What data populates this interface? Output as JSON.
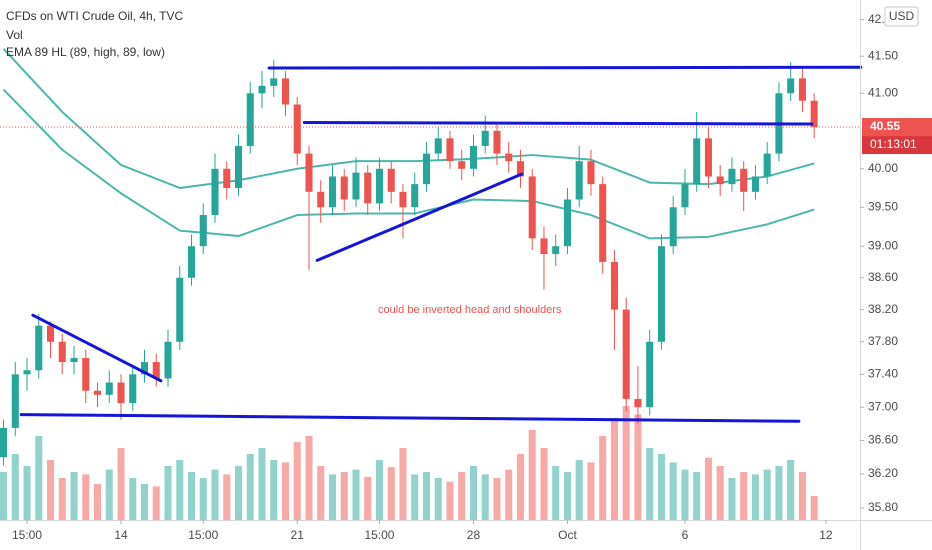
{
  "chart_data": {
    "type": "candlestick",
    "title": "CFDs on WTI Crude Oil, 4h, TVC",
    "indicators": [
      "Vol",
      "EMA 89 HL (89, high, 89, low)"
    ],
    "currency": "USD",
    "countdown": "01:13:01",
    "annotation": "could be inverted head and shoulders",
    "log_scale": true,
    "grid": false,
    "up_color": "#26a69a",
    "down_color": "#ef5350",
    "xlim": [
      -0.3,
      72.9
    ],
    "ylim": [
      35.66,
      42.27
    ],
    "yticks": [
      {
        "value": 42,
        "label": "42.00"
      },
      {
        "value": 41.5,
        "label": "41.50"
      },
      {
        "value": 41,
        "label": "41.00"
      },
      {
        "value": 40,
        "label": "40.00"
      },
      {
        "value": 39.5,
        "label": "39.50"
      },
      {
        "value": 39,
        "label": "39.00"
      },
      {
        "value": 38.6,
        "label": "38.60"
      },
      {
        "value": 38.2,
        "label": "38.20"
      },
      {
        "value": 37.8,
        "label": "37.80"
      },
      {
        "value": 37.4,
        "label": "37.40"
      },
      {
        "value": 37,
        "label": "37.00"
      },
      {
        "value": 36.6,
        "label": "36.60"
      },
      {
        "value": 36.2,
        "label": "36.20"
      },
      {
        "value": 35.8,
        "label": "35.80"
      }
    ],
    "xticks": [
      {
        "value": 2,
        "label": "15:00"
      },
      {
        "value": 10,
        "label": "14"
      },
      {
        "value": 17,
        "label": "15:00"
      },
      {
        "value": 25,
        "label": "21"
      },
      {
        "value": 32,
        "label": "15:00"
      },
      {
        "value": 40,
        "label": "28"
      },
      {
        "value": 48,
        "label": "Oct"
      },
      {
        "value": 58,
        "label": "6"
      },
      {
        "value": 70,
        "label": "12"
      }
    ],
    "open": [
      36.4,
      36.75,
      37.4,
      37.45,
      38.0,
      37.8,
      37.55,
      37.6,
      37.2,
      37.15,
      37.3,
      37.05,
      37.4,
      37.55,
      37.35,
      37.8,
      38.6,
      39.0,
      39.4,
      40.0,
      39.75,
      40.3,
      41.0,
      41.1,
      41.2,
      40.85,
      40.2,
      39.7,
      39.5,
      39.9,
      39.6,
      39.95,
      39.55,
      40.0,
      39.7,
      39.5,
      39.8,
      40.2,
      40.4,
      40.1,
      40.0,
      40.3,
      40.5,
      40.2,
      40.1,
      39.9,
      39.1,
      38.9,
      39.0,
      39.6,
      40.1,
      39.8,
      38.8,
      38.2,
      37.1,
      37.0,
      37.8,
      39.0,
      39.5,
      39.8,
      40.4,
      39.9,
      39.8,
      40.0,
      39.7,
      39.9,
      40.2,
      41.0,
      41.2,
      40.9
    ],
    "high": [
      36.85,
      37.55,
      37.6,
      38.15,
      38.05,
      37.9,
      37.75,
      37.7,
      37.3,
      37.45,
      37.4,
      37.5,
      37.7,
      37.65,
      37.95,
      38.75,
      39.15,
      39.55,
      40.2,
      40.1,
      40.45,
      41.15,
      41.3,
      41.45,
      41.3,
      40.95,
      40.3,
      39.85,
      40.05,
      40.0,
      40.15,
      40.05,
      40.15,
      40.1,
      39.8,
      39.95,
      40.35,
      40.55,
      40.5,
      40.25,
      40.45,
      40.7,
      40.6,
      40.35,
      40.25,
      40.0,
      39.25,
      39.15,
      39.75,
      40.3,
      40.25,
      39.9,
      38.95,
      38.35,
      37.5,
      37.95,
      39.15,
      39.65,
      40.0,
      40.75,
      40.55,
      40.05,
      40.15,
      40.1,
      40.05,
      40.35,
      41.15,
      41.42,
      41.35,
      41.0
    ],
    "low": [
      36.3,
      36.65,
      37.2,
      37.35,
      37.6,
      37.4,
      37.4,
      37.05,
      37.0,
      37.05,
      36.85,
      36.95,
      37.3,
      37.25,
      37.25,
      37.7,
      38.5,
      38.9,
      39.3,
      39.6,
      39.65,
      40.2,
      40.8,
      40.95,
      40.7,
      40.05,
      38.7,
      39.3,
      39.4,
      39.45,
      39.5,
      39.4,
      39.45,
      39.55,
      39.1,
      39.4,
      39.7,
      40.1,
      40.0,
      39.85,
      39.9,
      40.2,
      40.05,
      39.95,
      39.75,
      38.95,
      38.45,
      38.75,
      38.9,
      39.5,
      39.65,
      38.65,
      37.7,
      36.95,
      36.8,
      36.9,
      37.7,
      38.9,
      39.4,
      39.7,
      39.75,
      39.65,
      39.7,
      39.45,
      39.6,
      39.8,
      40.1,
      40.9,
      40.75,
      40.4
    ],
    "close": [
      36.75,
      37.4,
      37.45,
      38.0,
      37.8,
      37.55,
      37.6,
      37.2,
      37.15,
      37.3,
      37.05,
      37.4,
      37.55,
      37.35,
      37.8,
      38.6,
      39.0,
      39.4,
      40.0,
      39.75,
      40.3,
      41.0,
      41.1,
      41.2,
      40.85,
      40.2,
      39.7,
      39.5,
      39.9,
      39.6,
      39.95,
      39.55,
      40.0,
      39.7,
      39.5,
      39.8,
      40.2,
      40.4,
      40.1,
      40.0,
      40.3,
      40.5,
      40.2,
      40.1,
      39.9,
      39.1,
      38.9,
      39.0,
      39.6,
      40.1,
      39.8,
      38.8,
      38.2,
      37.1,
      37.0,
      37.8,
      39.0,
      39.5,
      39.8,
      40.4,
      39.9,
      39.8,
      40.0,
      39.7,
      39.9,
      40.2,
      41.0,
      41.2,
      40.9,
      40.55
    ],
    "volume": [
      40,
      55,
      45,
      70,
      50,
      35,
      40,
      38,
      30,
      42,
      60,
      35,
      30,
      28,
      45,
      50,
      40,
      35,
      42,
      38,
      45,
      55,
      60,
      50,
      48,
      65,
      70,
      45,
      38,
      40,
      42,
      36,
      50,
      44,
      60,
      38,
      40,
      35,
      32,
      40,
      45,
      38,
      35,
      42,
      55,
      75,
      60,
      45,
      40,
      50,
      48,
      70,
      85,
      95,
      88,
      60,
      55,
      48,
      42,
      40,
      52,
      45,
      35,
      40,
      38,
      42,
      45,
      50,
      40,
      20
    ],
    "volume_lim": [
      0,
      100
    ],
    "ema_lines": [
      {
        "color": "#4db6ac",
        "x": [
          0,
          5,
          10,
          15,
          20,
          25,
          30,
          35,
          40,
          45,
          50,
          55,
          60,
          65,
          69
        ],
        "values": [
          41.6,
          40.75,
          40.05,
          39.75,
          39.85,
          40.0,
          40.1,
          40.1,
          40.13,
          40.18,
          40.12,
          39.82,
          39.8,
          39.9,
          40.07
        ]
      },
      {
        "color": "#4db6ac",
        "x": [
          0,
          5,
          10,
          15,
          20,
          25,
          30,
          35,
          40,
          45,
          50,
          55,
          60,
          65,
          69
        ],
        "values": [
          41.05,
          40.25,
          39.68,
          39.2,
          39.13,
          39.4,
          39.42,
          39.42,
          39.6,
          39.58,
          39.4,
          39.1,
          39.12,
          39.28,
          39.47
        ]
      }
    ],
    "drawings": [
      {
        "color": "#1515d6",
        "x": [
          22.6,
          72.97
        ],
        "y": [
          41.34,
          41.35
        ]
      },
      {
        "color": "#1515d6",
        "x": [
          25.6,
          68.8
        ],
        "y": [
          40.61,
          40.59
        ]
      },
      {
        "color": "#1515d6",
        "x": [
          26.7,
          44.1
        ],
        "y": [
          38.82,
          39.93
        ]
      },
      {
        "color": "#1515d6",
        "x": [
          2.5,
          13.4
        ],
        "y": [
          38.13,
          37.32
        ]
      },
      {
        "color": "#1515d6",
        "x": [
          1.5,
          67.7
        ],
        "y": [
          36.91,
          36.83
        ]
      }
    ]
  }
}
